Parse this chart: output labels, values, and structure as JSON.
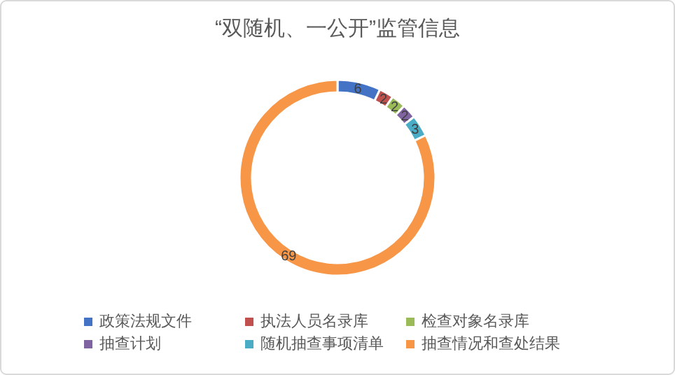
{
  "chart_data": {
    "type": "donut",
    "title": "“双随机、一公开”监管信息",
    "categories": [
      "政策法规文件",
      "执法人员名录库",
      "检查对象名录库",
      "抽查计划",
      "随机抽查事项清单",
      "抽查情况和查处结果"
    ],
    "values": [
      6,
      2,
      2,
      2,
      3,
      69
    ],
    "colors": [
      "#4472c4",
      "#c0504d",
      "#9bbb59",
      "#8064a2",
      "#4bacc6",
      "#f79646"
    ],
    "data_labels": true,
    "legend": "bottom"
  }
}
